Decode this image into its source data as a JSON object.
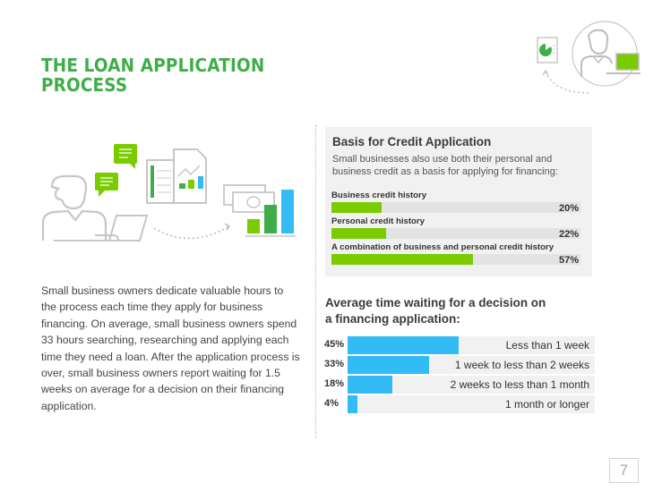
{
  "page": {
    "title_lines": [
      "THE LOAN APPLICATION",
      "PROCESS"
    ],
    "page_number": "7"
  },
  "colors": {
    "title_green": "#3fae49",
    "credit_bar": "#7acc00",
    "wait_bar": "#33bbf5",
    "panel_bg": "#f1f1f2"
  },
  "icons": {
    "hero": "person-laptop-report-icon",
    "illustration": "person-chat-documents-money-chart-illustration"
  },
  "body_text": "Small business owners dedicate valuable hours to the process each time they apply for business financing. On average, small business owners spend 33 hours searching, researching and applying each time they need a loan. After the application process is over, small business owners report waiting for 1.5 weeks on average for a decision on their financing application.",
  "credit_panel": {
    "title": "Basis for Credit Application",
    "subtitle": "Small businesses also use both their personal and business credit as a basis for applying for financing:"
  },
  "wait_section": {
    "title_lines": [
      "Average time waiting for a decision on",
      "a financing application:"
    ]
  },
  "chart_data": [
    {
      "type": "bar",
      "orientation": "horizontal",
      "title": "Basis for Credit Application",
      "categories": [
        "Business credit history",
        "Personal credit history",
        "A combination of business and personal credit history"
      ],
      "values": [
        20,
        22,
        57
      ],
      "value_labels": [
        "20%",
        "22%",
        "57%"
      ],
      "unit": "%",
      "xlim": [
        0,
        100
      ]
    },
    {
      "type": "bar",
      "orientation": "horizontal",
      "title": "Average time waiting for a decision on a financing application:",
      "categories": [
        "Less than 1 week",
        "1 week to less than 2 weeks",
        "2 weeks to less than 1 month",
        "1 month or longer"
      ],
      "values": [
        45,
        33,
        18,
        4
      ],
      "value_labels": [
        "45%",
        "33%",
        "18%",
        "4%"
      ],
      "unit": "%",
      "xlim": [
        0,
        100
      ]
    }
  ]
}
